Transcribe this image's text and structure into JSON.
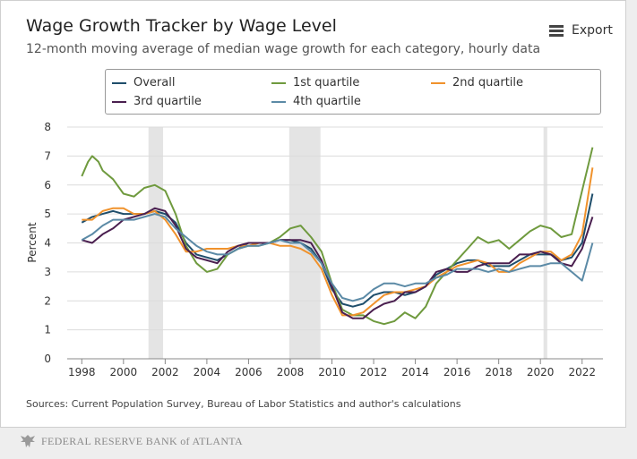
{
  "title": "Wage Growth Tracker by Wage Level",
  "subtitle": "12-month moving average of median wage growth for each category, hourly data",
  "export_label": "Export",
  "sources": "Sources: Current Population Survey, Bureau of Labor Statistics and author's calculations",
  "footer": "FEDERAL RESERVE BANK of ATLANTA",
  "footer_icon": "eagle-seal-icon",
  "chart_data": {
    "type": "line",
    "ylabel": "Percent",
    "xlabel": "",
    "xlim": [
      1997.3,
      2023.0
    ],
    "ylim": [
      0,
      8
    ],
    "yticks": [
      0,
      1,
      2,
      3,
      4,
      5,
      6,
      7,
      8
    ],
    "xticks": [
      1998,
      2000,
      2002,
      2004,
      2006,
      2008,
      2010,
      2012,
      2014,
      2016,
      2018,
      2020,
      2022
    ],
    "grid": "horizontal",
    "legend_placement": "top",
    "recessions": [
      [
        2001.2,
        2001.9
      ],
      [
        2007.95,
        2009.45
      ],
      [
        2020.15,
        2020.33
      ]
    ],
    "series": [
      {
        "name": "Overall",
        "color": "#1f4e6b",
        "x": [
          1998.0,
          1998.5,
          1999.0,
          1999.5,
          2000.0,
          2000.5,
          2001.0,
          2001.5,
          2002.0,
          2002.5,
          2003.0,
          2003.5,
          2004.0,
          2004.5,
          2005.0,
          2005.5,
          2006.0,
          2006.5,
          2007.0,
          2007.5,
          2008.0,
          2008.5,
          2009.0,
          2009.5,
          2010.0,
          2010.5,
          2011.0,
          2011.5,
          2012.0,
          2012.5,
          2013.0,
          2013.5,
          2014.0,
          2014.5,
          2015.0,
          2015.5,
          2016.0,
          2016.5,
          2017.0,
          2017.5,
          2018.0,
          2018.5,
          2019.0,
          2019.5,
          2020.0,
          2020.5,
          2021.0,
          2021.5,
          2022.0,
          2022.5
        ],
        "y": [
          4.7,
          4.9,
          5.0,
          5.1,
          5.0,
          5.0,
          5.0,
          5.1,
          5.0,
          4.7,
          4.0,
          3.6,
          3.5,
          3.4,
          3.6,
          3.8,
          4.0,
          4.0,
          4.0,
          4.1,
          4.1,
          4.0,
          3.8,
          3.3,
          2.4,
          1.9,
          1.8,
          1.9,
          2.2,
          2.3,
          2.3,
          2.2,
          2.3,
          2.5,
          2.9,
          3.1,
          3.3,
          3.4,
          3.4,
          3.2,
          3.2,
          3.2,
          3.4,
          3.6,
          3.6,
          3.6,
          3.4,
          3.5,
          4.0,
          5.7
        ]
      },
      {
        "name": "1st quartile",
        "color": "#6f9a3e",
        "x": [
          1998.0,
          1998.3,
          1998.5,
          1998.8,
          1999.0,
          1999.5,
          2000.0,
          2000.5,
          2001.0,
          2001.5,
          2002.0,
          2002.5,
          2003.0,
          2003.5,
          2004.0,
          2004.5,
          2005.0,
          2005.5,
          2006.0,
          2006.5,
          2007.0,
          2007.5,
          2008.0,
          2008.5,
          2009.0,
          2009.5,
          2010.0,
          2010.5,
          2011.0,
          2011.5,
          2012.0,
          2012.5,
          2013.0,
          2013.5,
          2014.0,
          2014.5,
          2015.0,
          2015.5,
          2016.0,
          2016.5,
          2017.0,
          2017.5,
          2018.0,
          2018.5,
          2019.0,
          2019.5,
          2020.0,
          2020.5,
          2021.0,
          2021.5,
          2022.0,
          2022.5
        ],
        "y": [
          6.3,
          6.8,
          7.0,
          6.8,
          6.5,
          6.2,
          5.7,
          5.6,
          5.9,
          6.0,
          5.8,
          5.0,
          3.9,
          3.3,
          3.0,
          3.1,
          3.6,
          3.8,
          3.9,
          3.9,
          4.0,
          4.2,
          4.5,
          4.6,
          4.2,
          3.7,
          2.6,
          1.7,
          1.5,
          1.5,
          1.3,
          1.2,
          1.3,
          1.6,
          1.4,
          1.8,
          2.6,
          3.0,
          3.4,
          3.8,
          4.2,
          4.0,
          4.1,
          3.8,
          4.1,
          4.4,
          4.6,
          4.5,
          4.2,
          4.3,
          5.8,
          7.3
        ]
      },
      {
        "name": "2nd quartile",
        "color": "#f0922c",
        "x": [
          1998.0,
          1998.5,
          1999.0,
          1999.5,
          2000.0,
          2000.5,
          2001.0,
          2001.5,
          2002.0,
          2002.5,
          2003.0,
          2003.5,
          2004.0,
          2004.5,
          2005.0,
          2005.5,
          2006.0,
          2006.5,
          2007.0,
          2007.5,
          2008.0,
          2008.5,
          2009.0,
          2009.5,
          2010.0,
          2010.5,
          2011.0,
          2011.5,
          2012.0,
          2012.5,
          2013.0,
          2013.5,
          2014.0,
          2014.5,
          2015.0,
          2015.5,
          2016.0,
          2016.5,
          2017.0,
          2017.5,
          2018.0,
          2018.5,
          2019.0,
          2019.5,
          2020.0,
          2020.5,
          2021.0,
          2021.5,
          2022.0,
          2022.5
        ],
        "y": [
          4.8,
          4.8,
          5.1,
          5.2,
          5.2,
          5.0,
          5.0,
          5.1,
          4.8,
          4.3,
          3.7,
          3.7,
          3.8,
          3.8,
          3.8,
          3.9,
          3.9,
          4.0,
          4.0,
          3.9,
          3.9,
          3.8,
          3.6,
          3.1,
          2.2,
          1.5,
          1.5,
          1.6,
          1.9,
          2.2,
          2.3,
          2.3,
          2.4,
          2.5,
          2.8,
          3.0,
          3.2,
          3.3,
          3.4,
          3.3,
          3.0,
          3.0,
          3.3,
          3.5,
          3.7,
          3.7,
          3.4,
          3.6,
          4.3,
          6.6
        ]
      },
      {
        "name": "3rd quartile",
        "color": "#4a1f4f",
        "x": [
          1998.0,
          1998.5,
          1999.0,
          1999.5,
          2000.0,
          2000.5,
          2001.0,
          2001.5,
          2002.0,
          2002.5,
          2003.0,
          2003.5,
          2004.0,
          2004.5,
          2005.0,
          2005.5,
          2006.0,
          2006.5,
          2007.0,
          2007.5,
          2008.0,
          2008.5,
          2009.0,
          2009.5,
          2010.0,
          2010.5,
          2011.0,
          2011.5,
          2012.0,
          2012.5,
          2013.0,
          2013.5,
          2014.0,
          2014.5,
          2015.0,
          2015.5,
          2016.0,
          2016.5,
          2017.0,
          2017.5,
          2018.0,
          2018.5,
          2019.0,
          2019.5,
          2020.0,
          2020.5,
          2021.0,
          2021.5,
          2022.0,
          2022.5
        ],
        "y": [
          4.1,
          4.0,
          4.3,
          4.5,
          4.8,
          4.9,
          5.0,
          5.2,
          5.1,
          4.6,
          3.8,
          3.5,
          3.4,
          3.3,
          3.7,
          3.9,
          4.0,
          4.0,
          4.0,
          4.1,
          4.1,
          4.1,
          4.0,
          3.4,
          2.5,
          1.6,
          1.4,
          1.4,
          1.7,
          1.9,
          2.0,
          2.3,
          2.3,
          2.5,
          3.0,
          3.1,
          3.0,
          3.0,
          3.2,
          3.3,
          3.3,
          3.3,
          3.6,
          3.6,
          3.7,
          3.6,
          3.3,
          3.2,
          3.8,
          4.9
        ]
      },
      {
        "name": "4th quartile",
        "color": "#5b8aa6",
        "x": [
          1998.0,
          1998.5,
          1999.0,
          1999.5,
          2000.0,
          2000.5,
          2001.0,
          2001.5,
          2002.0,
          2002.5,
          2003.0,
          2003.5,
          2004.0,
          2004.5,
          2005.0,
          2005.5,
          2006.0,
          2006.5,
          2007.0,
          2007.5,
          2008.0,
          2008.5,
          2009.0,
          2009.5,
          2010.0,
          2010.5,
          2011.0,
          2011.5,
          2012.0,
          2012.5,
          2013.0,
          2013.5,
          2014.0,
          2014.5,
          2015.0,
          2015.5,
          2016.0,
          2016.5,
          2017.0,
          2017.5,
          2018.0,
          2018.5,
          2019.0,
          2019.5,
          2020.0,
          2020.5,
          2021.0,
          2021.5,
          2022.0,
          2022.5
        ],
        "y": [
          4.1,
          4.3,
          4.6,
          4.8,
          4.8,
          4.8,
          4.9,
          5.0,
          4.9,
          4.5,
          4.2,
          3.9,
          3.7,
          3.6,
          3.6,
          3.8,
          3.9,
          3.9,
          4.0,
          4.1,
          4.0,
          4.0,
          3.7,
          3.3,
          2.6,
          2.1,
          2.0,
          2.1,
          2.4,
          2.6,
          2.6,
          2.5,
          2.6,
          2.6,
          2.8,
          2.9,
          3.1,
          3.1,
          3.1,
          3.0,
          3.1,
          3.0,
          3.1,
          3.2,
          3.2,
          3.3,
          3.3,
          3.0,
          2.7,
          4.0
        ]
      }
    ]
  }
}
